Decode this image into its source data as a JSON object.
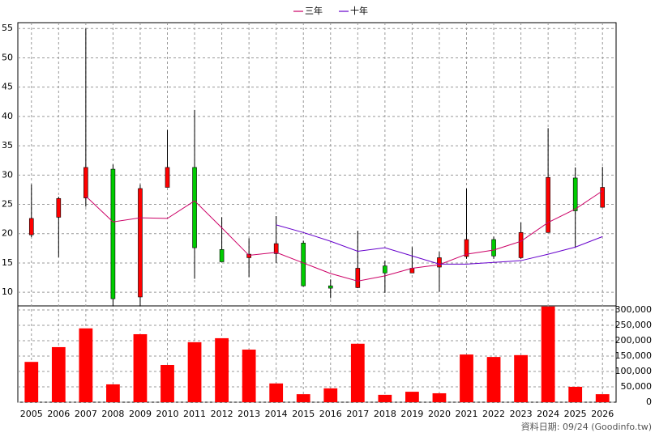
{
  "chart_data": {
    "type": "candlestick",
    "categories": [
      "2005",
      "2006",
      "2007",
      "2008",
      "2009",
      "2010",
      "2011",
      "2012",
      "2013",
      "2014",
      "2015",
      "2016",
      "2017",
      "2018",
      "2019",
      "2020",
      "2021",
      "2022",
      "2023",
      "2024",
      "2025",
      "2026"
    ],
    "open": [
      19.8,
      22.8,
      26.1,
      31.0,
      9.2,
      27.9,
      31.3,
      17.3,
      15.9,
      16.6,
      18.4,
      11.1,
      10.8,
      14.5,
      13.3,
      14.3,
      16.1,
      19.0,
      15.9,
      20.2,
      29.5,
      24.5
    ],
    "high": [
      28.4,
      26.3,
      55.0,
      31.8,
      28.4,
      37.7,
      41.1,
      22.8,
      19.2,
      23.0,
      18.8,
      12.2,
      20.5,
      15.4,
      17.7,
      16.9,
      27.7,
      19.5,
      21.9,
      38.0,
      31.3,
      31.4
    ],
    "low": [
      19.4,
      16.0,
      24.6,
      7.6,
      7.6,
      27.9,
      12.3,
      15.2,
      12.6,
      15.0,
      11.0,
      9.0,
      10.7,
      9.9,
      13.3,
      10.1,
      15.7,
      15.7,
      15.7,
      20.2,
      17.7,
      24.5
    ],
    "close": [
      22.6,
      26.0,
      31.3,
      8.9,
      27.7,
      31.3,
      17.6,
      15.2,
      16.5,
      18.3,
      11.1,
      10.7,
      14.1,
      13.3,
      14.1,
      15.9,
      19.0,
      16.2,
      20.2,
      29.6,
      23.9,
      27.9
    ],
    "up_color": "#ff0000",
    "down_color": "#00cc00",
    "series": [
      {
        "name": "三年",
        "color": "#cc0066",
        "values": [
          null,
          null,
          26.4,
          22.0,
          22.7,
          22.6,
          25.6,
          21.0,
          16.3,
          16.8,
          15.0,
          13.2,
          11.9,
          12.8,
          14.1,
          14.7,
          16.5,
          17.2,
          18.7,
          21.9,
          24.2,
          27.3
        ]
      },
      {
        "name": "十年",
        "color": "#6600cc",
        "values": [
          null,
          null,
          null,
          null,
          null,
          null,
          null,
          null,
          null,
          21.5,
          20.2,
          18.7,
          17.0,
          17.6,
          16.2,
          14.8,
          14.8,
          15.1,
          15.4,
          16.5,
          17.7,
          19.5
        ]
      }
    ],
    "ylim": [
      7.4,
      56
    ],
    "yticks": [
      10,
      15,
      20,
      25,
      30,
      35,
      40,
      45,
      50,
      55
    ],
    "grid": true,
    "volume": {
      "color": "#ff0000",
      "values": [
        131000,
        179000,
        240000,
        58000,
        221000,
        121000,
        195000,
        208000,
        171000,
        61000,
        26000,
        45000,
        190000,
        24000,
        34000,
        29000,
        155000,
        147000,
        153000,
        311000,
        50000,
        26000
      ],
      "ylim": [
        0,
        313000
      ],
      "yticks": [
        0,
        {
          "value": 50000,
          "label": "50,000"
        },
        {
          "value": 100000,
          "label": "100,000"
        },
        {
          "value": 150000,
          "label": "150,000"
        },
        {
          "value": 200000,
          "label": "200,000"
        },
        {
          "value": 250000,
          "label": "250,000"
        },
        {
          "value": 300000,
          "label": "300,000"
        }
      ]
    },
    "source": "資料日期: 09/24 (Goodinfo.tw)"
  }
}
